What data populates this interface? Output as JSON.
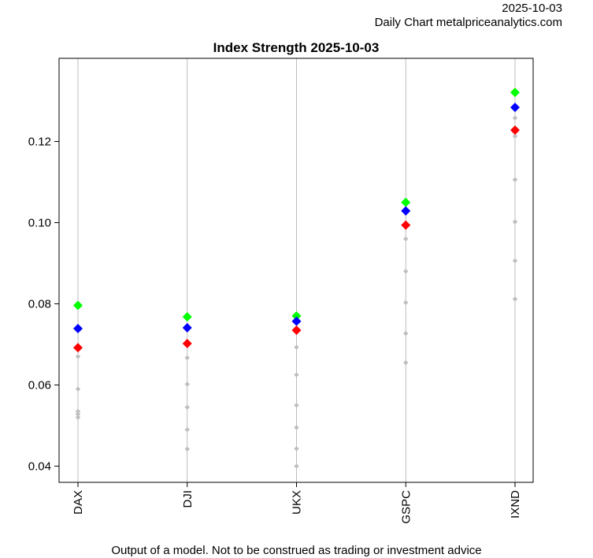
{
  "header": {
    "date": "2025-10-03",
    "source": "Daily Chart metalpriceanalytics.com"
  },
  "footer": {
    "disclaimer": "Output of a model. Not to be construed as trading or investment advice"
  },
  "chart_data": {
    "type": "scatter",
    "title": "Index Strength 2025-10-03",
    "xlabel": "",
    "ylabel": "",
    "categories": [
      "DAX",
      "DJI",
      "UKX",
      "GSPC",
      "IXND"
    ],
    "ylim": [
      0.036,
      0.1405
    ],
    "yticks": [
      0.04,
      0.06,
      0.08,
      0.1,
      0.12
    ],
    "ytick_labels": [
      "0.04",
      "0.06",
      "0.08",
      "0.10",
      "0.12"
    ],
    "grid": "vertical lines at each category",
    "highlight_series": [
      {
        "color": "#00ff00",
        "values": [
          0.0796,
          0.0768,
          0.077,
          0.105,
          0.1321
        ]
      },
      {
        "color": "#0000ff",
        "values": [
          0.0739,
          0.0741,
          0.0757,
          0.1029,
          0.1284
        ]
      },
      {
        "color": "#ff0000",
        "values": [
          0.0692,
          0.0702,
          0.0735,
          0.0994,
          0.1228
        ]
      }
    ],
    "history_points": {
      "color": "#bebebe",
      "values": [
        [
          0.067,
          0.059,
          0.0535,
          0.0528,
          0.052
        ],
        [
          0.0667,
          0.0602,
          0.0545,
          0.049,
          0.0442
        ],
        [
          0.0693,
          0.0625,
          0.055,
          0.0495,
          0.0443,
          0.04
        ],
        [
          0.096,
          0.088,
          0.0803,
          0.0727,
          0.0655
        ],
        [
          0.1258,
          0.1213,
          0.1106,
          0.1002,
          0.0906,
          0.0812
        ]
      ]
    }
  }
}
